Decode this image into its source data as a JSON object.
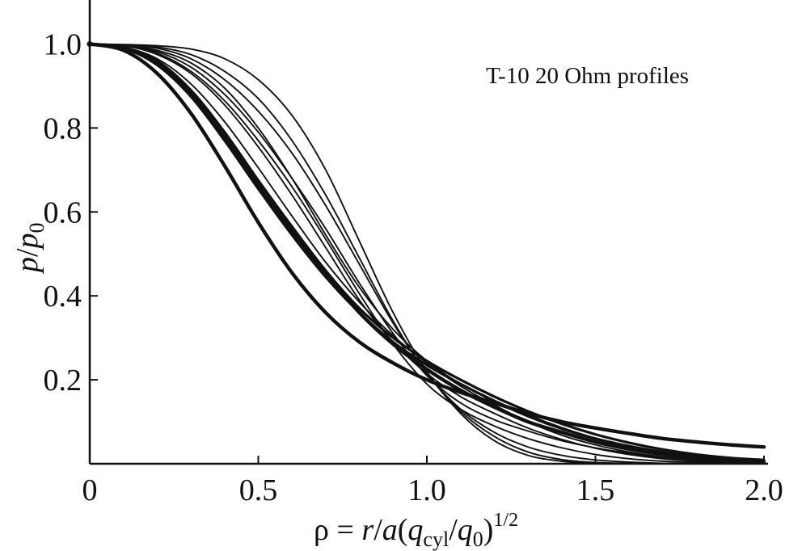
{
  "chart_data": {
    "type": "line",
    "title": "",
    "annotation": "T-10 20 Ohm profiles",
    "xlabel": {
      "lead": "ρ = ",
      "r": "r",
      "slash1": "/",
      "a": "a",
      "open": "(",
      "q1": "q",
      "sub1": "cyl",
      "slash2": "/",
      "q2": "q",
      "sub2": "0",
      "close": ")",
      "sup": "1/2"
    },
    "ylabel": {
      "p1": "p",
      "slash": "/",
      "p2": "p",
      "sub": "0"
    },
    "xlim": [
      0,
      2.0
    ],
    "ylim": [
      0,
      1.1
    ],
    "xticks": [
      {
        "value": 0,
        "label": "0"
      },
      {
        "value": 0.5,
        "label": "0.5"
      },
      {
        "value": 1.0,
        "label": "1.0"
      },
      {
        "value": 1.5,
        "label": "1.5"
      },
      {
        "value": 2.0,
        "label": "2.0"
      }
    ],
    "yticks": [
      {
        "value": 0.2,
        "label": "0.2"
      },
      {
        "value": 0.4,
        "label": "0.4"
      },
      {
        "value": 0.6,
        "label": "0.6"
      },
      {
        "value": 0.8,
        "label": "0.8"
      },
      {
        "value": 1.0,
        "label": "1.0"
      }
    ],
    "x": [
      0,
      0.1,
      0.2,
      0.3,
      0.4,
      0.5,
      0.6,
      0.7,
      0.8,
      0.9,
      1.0,
      1.1,
      1.2,
      1.3,
      1.4,
      1.5,
      1.6,
      1.7,
      1.8,
      1.9,
      2.0
    ],
    "series": [
      {
        "weight": "heavy",
        "values": [
          1.0,
          0.985,
          0.93,
          0.835,
          0.71,
          0.575,
          0.455,
          0.36,
          0.29,
          0.24,
          0.2,
          0.17,
          0.145,
          0.12,
          0.1,
          0.085,
          0.072,
          0.06,
          0.052,
          0.045,
          0.04
        ]
      },
      {
        "weight": "heavy",
        "values": [
          1.0,
          0.99,
          0.955,
          0.88,
          0.78,
          0.665,
          0.555,
          0.455,
          0.36,
          0.285,
          0.225,
          0.175,
          0.135,
          0.1,
          0.075,
          0.052,
          0.035,
          0.022,
          0.014,
          0.008,
          0.004
        ]
      },
      {
        "weight": "medium",
        "values": [
          1.0,
          0.99,
          0.95,
          0.875,
          0.77,
          0.655,
          0.545,
          0.445,
          0.36,
          0.29,
          0.235,
          0.19,
          0.15,
          0.115,
          0.085,
          0.06,
          0.042,
          0.028,
          0.018,
          0.012,
          0.008
        ]
      },
      {
        "weight": "medium",
        "values": [
          1.0,
          0.992,
          0.96,
          0.89,
          0.79,
          0.675,
          0.565,
          0.46,
          0.37,
          0.3,
          0.245,
          0.2,
          0.16,
          0.125,
          0.095,
          0.07,
          0.05,
          0.034,
          0.022,
          0.014,
          0.009
        ]
      },
      {
        "weight": "thin",
        "values": [
          1.0,
          0.993,
          0.965,
          0.905,
          0.815,
          0.705,
          0.59,
          0.48,
          0.385,
          0.305,
          0.24,
          0.185,
          0.14,
          0.1,
          0.068,
          0.045,
          0.028,
          0.016,
          0.009,
          0.005,
          0.002
        ]
      },
      {
        "weight": "thin",
        "values": [
          1.0,
          0.996,
          0.975,
          0.93,
          0.855,
          0.755,
          0.64,
          0.515,
          0.39,
          0.29,
          0.215,
          0.16,
          0.12,
          0.085,
          0.058,
          0.037,
          0.022,
          0.012,
          0.006,
          0.003,
          0.001
        ]
      },
      {
        "weight": "thin",
        "values": [
          1.0,
          0.996,
          0.978,
          0.935,
          0.865,
          0.77,
          0.66,
          0.535,
          0.405,
          0.285,
          0.19,
          0.13,
          0.09,
          0.06,
          0.038,
          0.022,
          0.012,
          0.006,
          0.003,
          0.001,
          0.0
        ]
      },
      {
        "weight": "thin",
        "values": [
          1.0,
          0.997,
          0.982,
          0.945,
          0.88,
          0.79,
          0.68,
          0.56,
          0.43,
          0.31,
          0.21,
          0.145,
          0.105,
          0.078,
          0.055,
          0.038,
          0.025,
          0.015,
          0.009,
          0.005,
          0.002
        ]
      },
      {
        "weight": "thin",
        "values": [
          1.0,
          0.998,
          0.99,
          0.965,
          0.915,
          0.84,
          0.74,
          0.615,
          0.475,
          0.335,
          0.215,
          0.125,
          0.065,
          0.028,
          0.01,
          0.003,
          0.001,
          0.0,
          0.0,
          0.0,
          0.0
        ]
      },
      {
        "weight": "thin",
        "values": [
          1.0,
          0.998,
          0.993,
          0.975,
          0.935,
          0.87,
          0.77,
          0.64,
          0.49,
          0.34,
          0.215,
          0.13,
          0.075,
          0.04,
          0.02,
          0.009,
          0.004,
          0.001,
          0.0,
          0.0,
          0.0
        ]
      },
      {
        "weight": "thin",
        "values": [
          1.0,
          0.999,
          0.996,
          0.988,
          0.965,
          0.915,
          0.83,
          0.7,
          0.53,
          0.36,
          0.22,
          0.12,
          0.055,
          0.02,
          0.006,
          0.001,
          0.0,
          0.0,
          0.0,
          0.0,
          0.0
        ]
      },
      {
        "weight": "thin",
        "values": [
          1.0,
          0.997,
          0.985,
          0.955,
          0.895,
          0.8,
          0.68,
          0.545,
          0.42,
          0.32,
          0.245,
          0.19,
          0.148,
          0.112,
          0.082,
          0.058,
          0.04,
          0.027,
          0.018,
          0.012,
          0.008
        ]
      }
    ]
  }
}
